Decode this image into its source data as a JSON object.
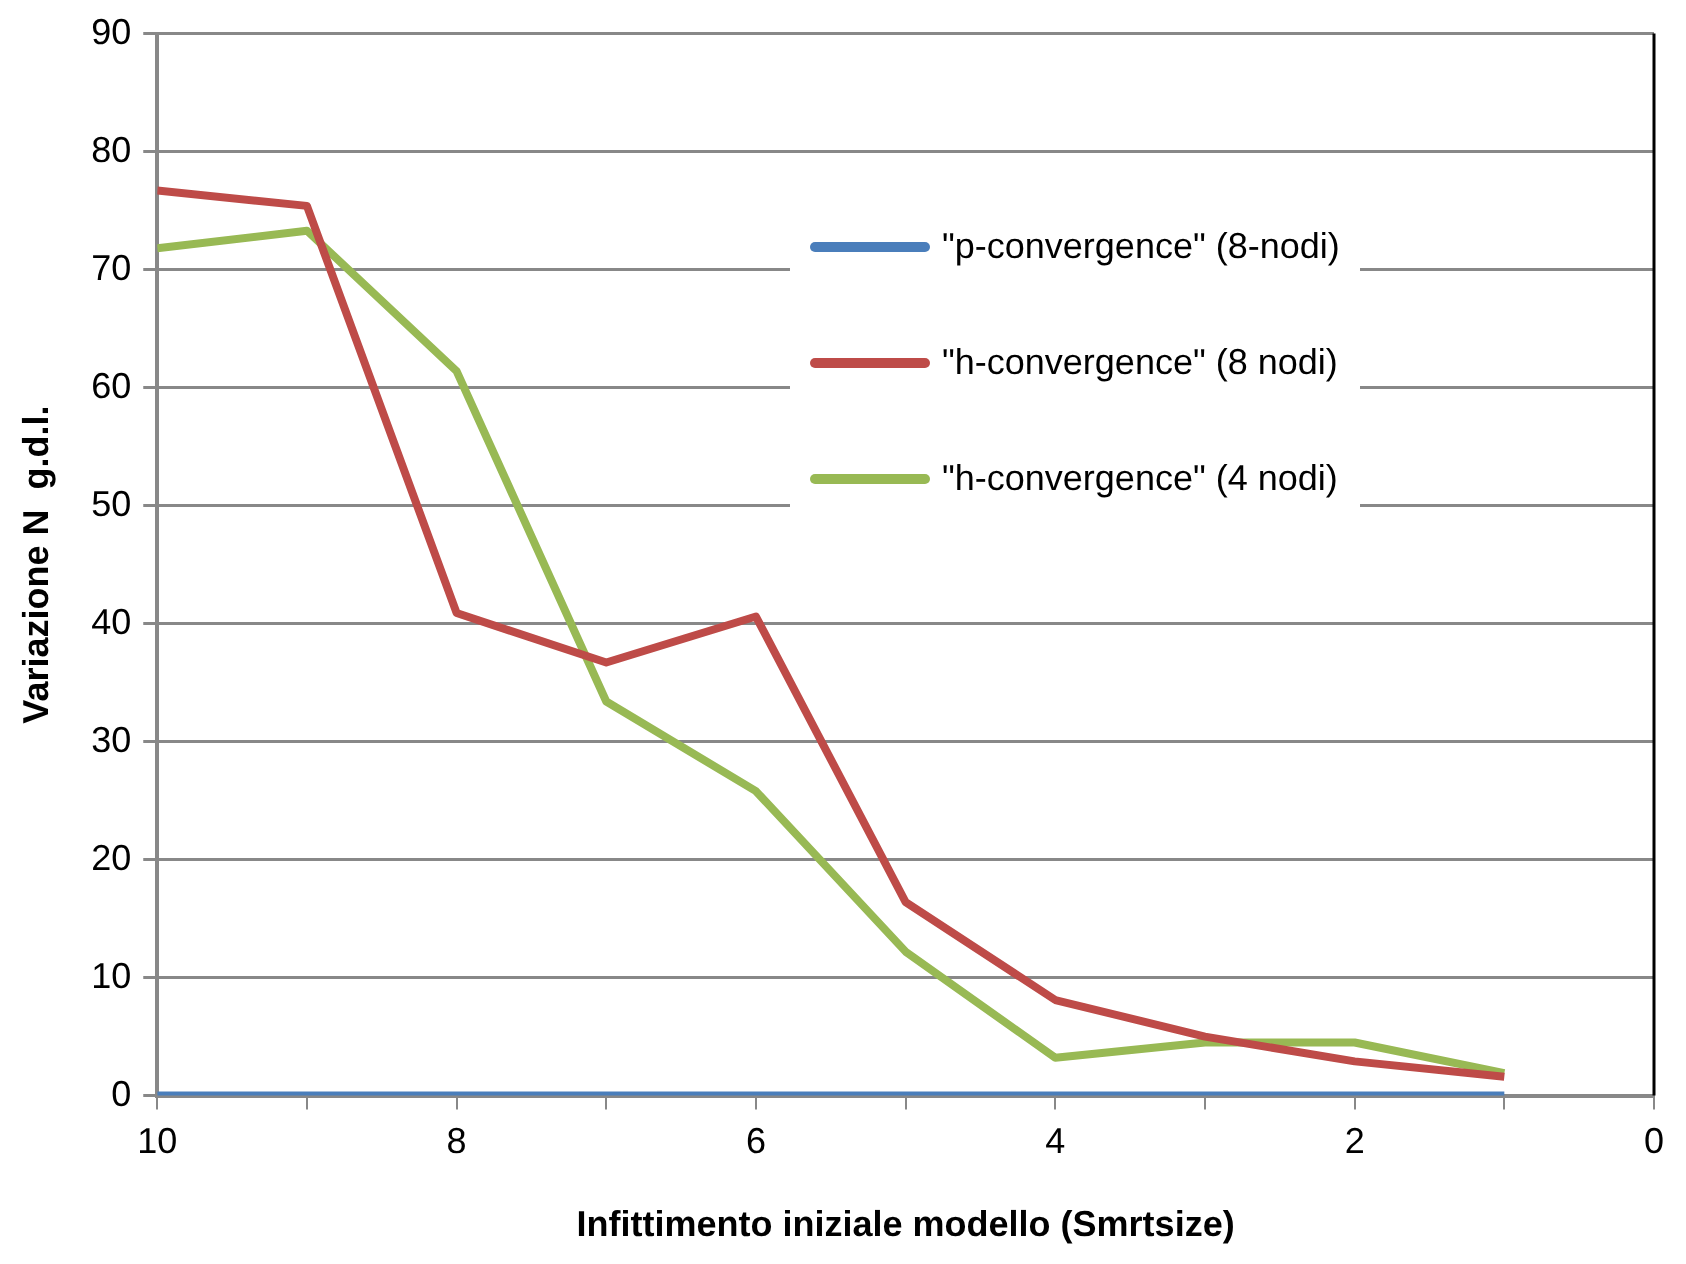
{
  "chart_data": {
    "type": "line",
    "xlabel": "Infittimento iniziale modello (Smrtsize)",
    "ylabel": "Variazione N  g.d.l.",
    "x": [
      10,
      9,
      8,
      7,
      6,
      5,
      4,
      3,
      2,
      1
    ],
    "series": [
      {
        "name": "\"p-convergence\" (8-nodi)",
        "color": "#4a7ebb",
        "values": [
          0,
          0,
          0,
          0,
          0,
          0,
          0,
          0,
          0,
          0
        ]
      },
      {
        "name": "\"h-convergence\" (8 nodi)",
        "color": "#be4b48",
        "values": [
          76.7,
          75.4,
          40.9,
          36.7,
          40.6,
          16.4,
          8.1,
          5,
          2.9,
          1.6
        ]
      },
      {
        "name": "\"h-convergence\" (4 nodi)",
        "color": "#98b954",
        "values": [
          71.8,
          73.3,
          61.4,
          33.4,
          25.8,
          12.2,
          3.2,
          4.5,
          4.5,
          1.9
        ]
      }
    ],
    "xlim": [
      10,
      0
    ],
    "xticks": [
      10,
      {
        "value": 9,
        "label": null
      },
      8,
      {
        "value": 7,
        "label": null
      },
      6,
      {
        "value": 5,
        "label": null
      },
      4,
      {
        "value": 3,
        "label": null
      },
      2,
      {
        "value": 1,
        "label": null
      },
      0
    ],
    "ylim": [
      0,
      90
    ],
    "yticks": [
      0,
      10,
      20,
      30,
      40,
      50,
      60,
      70,
      80,
      90
    ],
    "grid": "y",
    "legend": "top right",
    "marker": "none",
    "line_style": "solid"
  }
}
